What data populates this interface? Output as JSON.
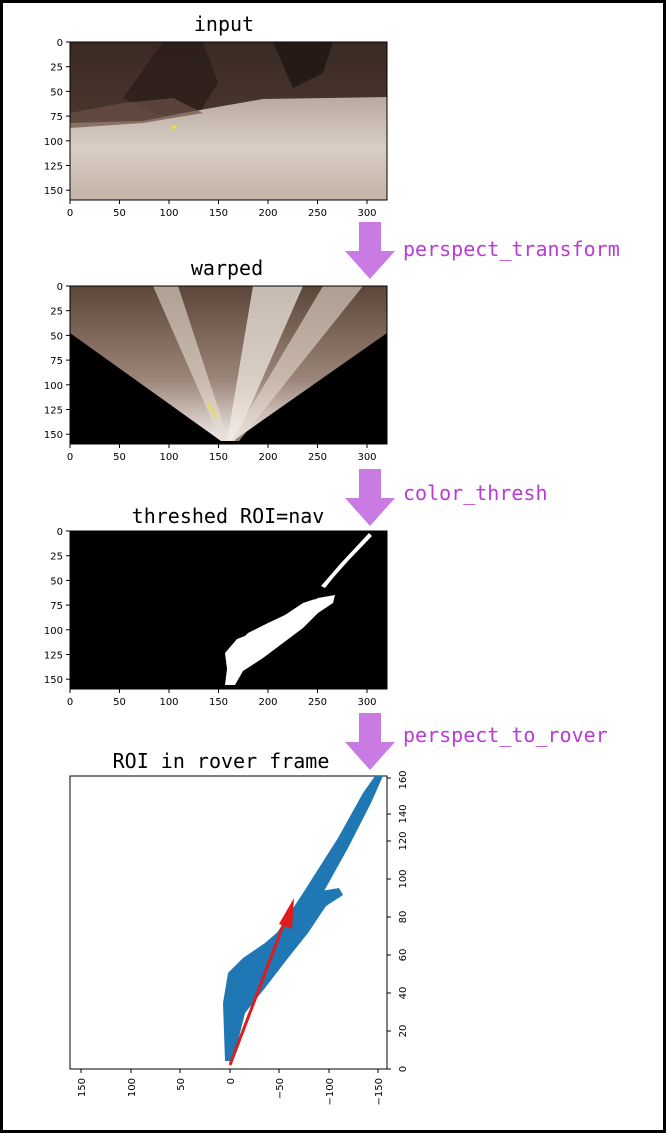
{
  "panels": [
    {
      "title": "input",
      "x_ticks": [
        "0",
        "50",
        "100",
        "150",
        "200",
        "250",
        "300"
      ],
      "y_ticks": [
        "0",
        "25",
        "50",
        "75",
        "100",
        "125",
        "150"
      ]
    },
    {
      "title": "warped",
      "x_ticks": [
        "0",
        "50",
        "100",
        "150",
        "200",
        "250",
        "300"
      ],
      "y_ticks": [
        "0",
        "25",
        "50",
        "75",
        "100",
        "125",
        "150"
      ]
    },
    {
      "title": "threshed ROI=nav",
      "x_ticks": [
        "0",
        "50",
        "100",
        "150",
        "200",
        "250",
        "300"
      ],
      "y_ticks": [
        "0",
        "25",
        "50",
        "75",
        "100",
        "125",
        "150"
      ]
    },
    {
      "title": "ROI in rover frame",
      "x_ticks": [
        "150",
        "100",
        "50",
        "0",
        "−50",
        "−100",
        "−150"
      ],
      "y_ticks": [
        "0",
        "20",
        "40",
        "60",
        "80",
        "100",
        "120",
        "140",
        "160"
      ]
    }
  ],
  "steps": [
    {
      "label": "perspect_transform"
    },
    {
      "label": "color_thresh"
    },
    {
      "label": "perspect_to_rover"
    }
  ],
  "colors": {
    "arrow_fill": "#c97be3",
    "step_label": "#b63cd4",
    "scatter": "#1f77b4",
    "heading_arrow": "#e01b1b"
  },
  "chart_data": {
    "type": "scatter",
    "title": "ROI in rover frame",
    "xlim": [
      160,
      -160
    ],
    "ylim": [
      0,
      160
    ],
    "series": [
      {
        "x": [
          0,
          -20,
          -40,
          -60,
          -80,
          -100,
          -120,
          -140,
          -152
        ],
        "y": [
          5,
          20,
          40,
          55,
          75,
          95,
          115,
          140,
          160
        ]
      }
    ],
    "arrow": {
      "from": [
        0,
        5
      ],
      "to": [
        -35,
        90
      ]
    }
  }
}
